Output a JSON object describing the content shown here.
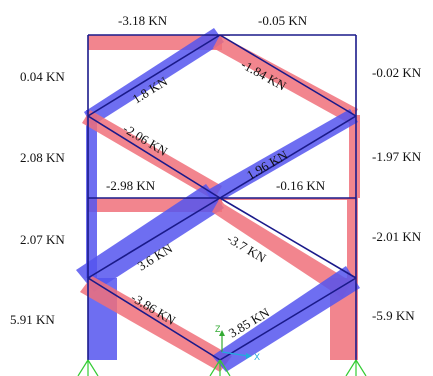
{
  "colors": {
    "tension": "#f0707a",
    "compression": "#5555ee",
    "frame": "#1a1a8a",
    "support": "#33cc33",
    "axis_z": "#33aa33",
    "axis_x": "#22aadd"
  },
  "axes": {
    "x_label": "X",
    "z_label": "Z"
  },
  "members": [
    {
      "id": "top-beam-left",
      "label": "-3.18 KN",
      "sign": "tension"
    },
    {
      "id": "top-beam-right",
      "label": "-0.05 KN",
      "sign": "tension"
    },
    {
      "id": "col-left-upper",
      "label": "0.04 KN",
      "sign": "compression"
    },
    {
      "id": "col-right-upper",
      "label": "-0.02 KN",
      "sign": "tension"
    },
    {
      "id": "brace-upper-1",
      "label": "1.8 KN",
      "sign": "compression"
    },
    {
      "id": "brace-upper-2",
      "label": "-1.84 KN",
      "sign": "tension"
    },
    {
      "id": "col-left-mid",
      "label": "2.08 KN",
      "sign": "compression"
    },
    {
      "id": "col-right-mid",
      "label": "-1.97 KN",
      "sign": "tension"
    },
    {
      "id": "brace-mid-1",
      "label": "-2.06 KN",
      "sign": "tension"
    },
    {
      "id": "brace-mid-2",
      "label": "1.96 KN",
      "sign": "compression"
    },
    {
      "id": "mid-beam-left",
      "label": "-2.98 KN",
      "sign": "tension"
    },
    {
      "id": "mid-beam-right",
      "label": "-0.16 KN",
      "sign": "tension"
    },
    {
      "id": "col-left-lower",
      "label": "2.07 KN",
      "sign": "compression"
    },
    {
      "id": "col-right-lower",
      "label": "-2.01 KN",
      "sign": "tension"
    },
    {
      "id": "brace-lower-1",
      "label": "3.6 KN",
      "sign": "compression"
    },
    {
      "id": "brace-lower-2",
      "label": "-3.7 KN",
      "sign": "tension"
    },
    {
      "id": "col-left-base",
      "label": "5.91 KN",
      "sign": "compression"
    },
    {
      "id": "col-right-base",
      "label": "-5.9 KN",
      "sign": "tension"
    },
    {
      "id": "brace-bottom-1",
      "label": "-3.86 KN",
      "sign": "tension"
    },
    {
      "id": "brace-bottom-2",
      "label": "3.85 KN",
      "sign": "compression"
    }
  ]
}
